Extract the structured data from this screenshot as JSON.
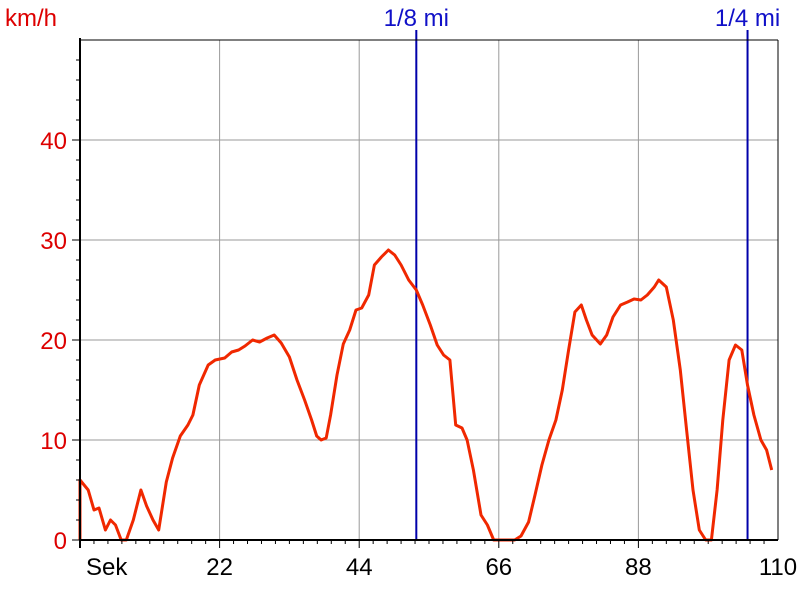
{
  "chart_data": {
    "type": "line",
    "y_unit_label": "km/h",
    "x_unit_label": "Sek",
    "xlim": [
      0,
      110
    ],
    "ylim": [
      0,
      50
    ],
    "x_ticks": [
      0,
      22,
      44,
      66,
      88,
      110
    ],
    "x_tick_labels": [
      "Sek",
      "22",
      "44",
      "66",
      "88",
      "110"
    ],
    "y_ticks": [
      0,
      10,
      20,
      30,
      40
    ],
    "y_tick_labels": [
      "0",
      "10",
      "20",
      "30",
      "40"
    ],
    "grid": true,
    "markers": [
      {
        "label": "1/8 mi",
        "x": 53
      },
      {
        "label": "1/4 mi",
        "x": 105.2
      }
    ],
    "series": [
      {
        "points": [
          [
            0,
            0
          ],
          [
            0,
            6
          ],
          [
            1.3,
            5
          ],
          [
            2.2,
            3
          ],
          [
            3,
            3.2
          ],
          [
            4,
            1
          ],
          [
            4.8,
            2
          ],
          [
            5.6,
            1.5
          ],
          [
            6.5,
            0
          ],
          [
            7.3,
            0
          ],
          [
            8.4,
            2
          ],
          [
            9.6,
            5
          ],
          [
            10.5,
            3.4
          ],
          [
            11.5,
            2
          ],
          [
            12.4,
            1
          ],
          [
            13.6,
            5.8
          ],
          [
            14.6,
            8.2
          ],
          [
            15.8,
            10.4
          ],
          [
            17,
            11.5
          ],
          [
            17.8,
            12.5
          ],
          [
            18.8,
            15.5
          ],
          [
            20.2,
            17.5
          ],
          [
            21.3,
            18
          ],
          [
            22.8,
            18.2
          ],
          [
            23.9,
            18.8
          ],
          [
            25,
            19
          ],
          [
            26,
            19.4
          ],
          [
            27.2,
            20
          ],
          [
            28.3,
            19.8
          ],
          [
            29.5,
            20.2
          ],
          [
            30.6,
            20.5
          ],
          [
            31.7,
            19.7
          ],
          [
            33,
            18.3
          ],
          [
            34.2,
            16
          ],
          [
            35.4,
            14
          ],
          [
            36.5,
            12
          ],
          [
            37.3,
            10.4
          ],
          [
            38,
            10
          ],
          [
            38.8,
            10.2
          ],
          [
            39.5,
            12.5
          ],
          [
            40.5,
            16.5
          ],
          [
            41.5,
            19.6
          ],
          [
            42.5,
            21
          ],
          [
            43.5,
            23
          ],
          [
            44.4,
            23.2
          ],
          [
            45.5,
            24.5
          ],
          [
            46.4,
            27.5
          ],
          [
            47.5,
            28.3
          ],
          [
            48.6,
            29
          ],
          [
            49.6,
            28.5
          ],
          [
            50.6,
            27.5
          ],
          [
            51.8,
            26
          ],
          [
            53,
            25
          ],
          [
            54,
            23.5
          ],
          [
            55.2,
            21.5
          ],
          [
            56.3,
            19.5
          ],
          [
            57.3,
            18.5
          ],
          [
            58.3,
            18
          ],
          [
            59.2,
            11.5
          ],
          [
            60.2,
            11.2
          ],
          [
            61,
            10
          ],
          [
            62,
            7
          ],
          [
            63.2,
            2.5
          ],
          [
            64.2,
            1.5
          ],
          [
            65.2,
            0
          ],
          [
            66.5,
            0
          ],
          [
            67.5,
            0
          ],
          [
            68.5,
            0
          ],
          [
            69.5,
            0.4
          ],
          [
            70.7,
            1.8
          ],
          [
            71.7,
            4.5
          ],
          [
            72.8,
            7.5
          ],
          [
            73.9,
            10
          ],
          [
            75,
            12
          ],
          [
            76,
            15
          ],
          [
            77,
            19
          ],
          [
            78,
            22.8
          ],
          [
            79,
            23.5
          ],
          [
            79.8,
            22
          ],
          [
            80.7,
            20.5
          ],
          [
            82,
            19.6
          ],
          [
            83,
            20.5
          ],
          [
            84,
            22.3
          ],
          [
            85.2,
            23.5
          ],
          [
            86.3,
            23.8
          ],
          [
            87.3,
            24.1
          ],
          [
            88.4,
            24
          ],
          [
            89.4,
            24.5
          ],
          [
            90.5,
            25.3
          ],
          [
            91.2,
            26
          ],
          [
            92.4,
            25.3
          ],
          [
            93.5,
            22
          ],
          [
            94.6,
            17
          ],
          [
            95.6,
            11
          ],
          [
            96.6,
            5
          ],
          [
            97.6,
            1
          ],
          [
            98.6,
            0
          ],
          [
            99.5,
            0
          ],
          [
            100.4,
            5
          ],
          [
            101.3,
            12
          ],
          [
            102.3,
            18
          ],
          [
            103.3,
            19.5
          ],
          [
            104.3,
            19
          ],
          [
            105.2,
            15.5
          ],
          [
            106.2,
            12.5
          ],
          [
            107.3,
            10
          ],
          [
            108.2,
            9
          ],
          [
            109,
            7
          ]
        ]
      }
    ],
    "colors": {
      "series": "#f02800",
      "y_tick_text": "#dd0000",
      "marker": "#0000aa",
      "marker_text": "#1010c8",
      "grid": "#9a9a9a",
      "axis": "#000000",
      "x_tick_text": "#000000"
    }
  }
}
